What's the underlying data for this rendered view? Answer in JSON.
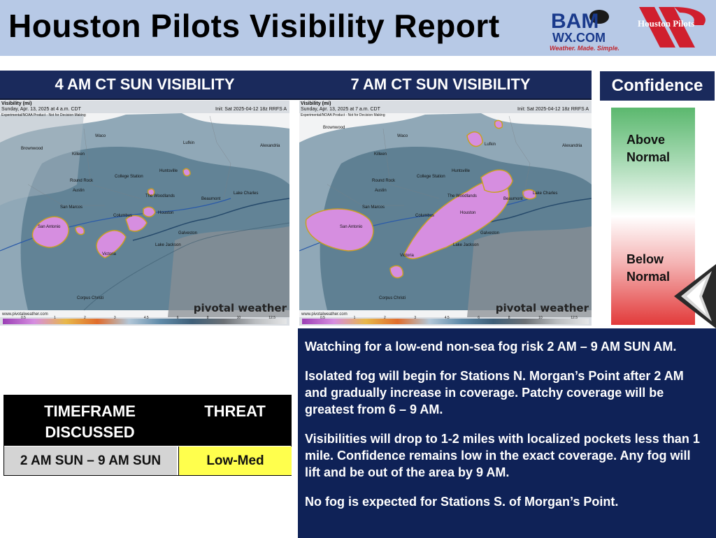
{
  "header": {
    "title": "Houston Pilots Visibility Report",
    "bam_logo": {
      "line1": "BAM",
      "line2": "WX.COM",
      "tagline": "Weather. Made. Simple."
    },
    "hp_logo": {
      "text": "Houston Pilots"
    }
  },
  "maps": [
    {
      "heading": "4 AM CT SUN VISIBILITY",
      "product": "Visibility (mi)",
      "valid": "Sunday, Apr. 13, 2025 at 4 a.m. CDT",
      "note": "Experimental/NOAA Product - Not for Decision Making",
      "init": "Init: Sat 2025-04-12 18z RRFS A",
      "brand": "pivotal weather",
      "url": "www.pivotalweather.com",
      "scale_ticks": [
        "0.5",
        "1",
        "2",
        "3",
        "4.5",
        "6",
        "8",
        "10",
        "12.5"
      ],
      "cities": [
        "Brownwood",
        "Waco",
        "Killeen",
        "Lufkin",
        "Alexandria",
        "Round Rock",
        "College Station",
        "Huntsville",
        "Austin",
        "The Woodlands",
        "Lake Charles",
        "Beaumont",
        "San Marcos",
        "San Antonio",
        "Columbus",
        "Houston",
        "Galveston",
        "Lake Jackson",
        "Victoria",
        "Corpus Christi"
      ]
    },
    {
      "heading": "7 AM CT SUN VISIBILITY",
      "product": "Visibility (mi)",
      "valid": "Sunday, Apr. 13, 2025 at 7 a.m. CDT",
      "note": "Experimental/NOAA Product - Not for Decision Making",
      "init": "Init: Sat 2025-04-12 18z RRFS A",
      "brand": "pivotal weather",
      "url": "www.pivotalweather.com",
      "scale_ticks": [
        "0.5",
        "1",
        "2",
        "3",
        "4.5",
        "6",
        "8",
        "10",
        "12.5"
      ],
      "cities": [
        "Brownwood",
        "Waco",
        "Killeen",
        "Lufkin",
        "Alexandria",
        "Round Rock",
        "College Station",
        "Huntsville",
        "Austin",
        "The Woodlands",
        "Lake Charles",
        "Beaumont",
        "San Marcos",
        "San Antonio",
        "Columbus",
        "Houston",
        "Galveston",
        "Lake Jackson",
        "Victoria",
        "Corpus Christi"
      ]
    }
  ],
  "confidence": {
    "heading": "Confidence",
    "above": [
      "Above",
      "Normal"
    ],
    "below": [
      "Below",
      "Normal"
    ],
    "level": "below-normal",
    "colors": {
      "high": "#5bb86e",
      "low": "#e23a3a"
    }
  },
  "threat_table": {
    "col1_header": [
      "TIMEFRAME",
      "DISCUSSED"
    ],
    "col2_header": "THREAT",
    "timeframe": "2 AM SUN – 9 AM SUN",
    "threat": "Low-Med",
    "threat_color": "#ffff4d"
  },
  "discussion": [
    "Watching for a low-end non-sea fog risk 2 AM – 9 AM SUN AM.",
    "Isolated fog will begin for Stations N. Morgan’s Point after 2 AM and gradually increase in coverage. Patchy coverage will be greatest from 6 – 9 AM.",
    "Visibilities will drop to 1-2 miles with localized pockets less than 1 mile. Confidence remains low in the exact coverage. Any fog will lift and be out of the area by 9 AM.",
    "No fog is expected for Stations S. of Morgan’s Point."
  ]
}
